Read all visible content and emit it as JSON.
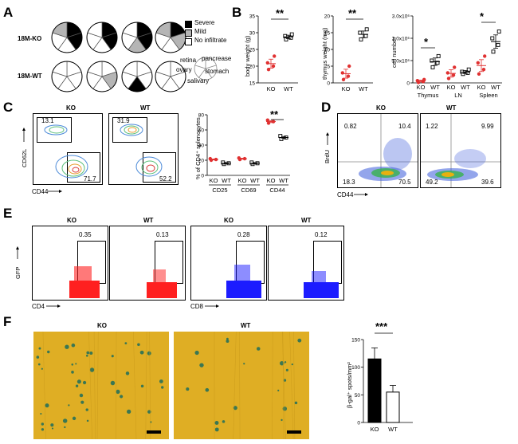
{
  "panels": {
    "A": "A",
    "B": "B",
    "C": "C",
    "D": "D",
    "E": "E",
    "F": "F"
  },
  "panelA": {
    "row_ko": "18M-KO",
    "row_wt": "18M-WT",
    "legend": [
      "Severe",
      "Mild",
      "No infiltrate"
    ],
    "organs": [
      "retina",
      "pancrease",
      "ovary",
      "stomach",
      "salivary"
    ],
    "colors": {
      "severe": "#000000",
      "mild": "#b5b5b5",
      "none": "#ffffff"
    }
  },
  "panelB": {
    "body": {
      "ylabel": "body weight (g)",
      "yticks": [
        "15",
        "20",
        "25",
        "30",
        "35"
      ],
      "groups": [
        "KO",
        "WT"
      ],
      "sig": "**"
    },
    "thymus": {
      "ylabel": "thymus weight (mg)",
      "yticks": [
        "0",
        "5",
        "10",
        "15",
        "20"
      ],
      "groups": [
        "KO",
        "WT"
      ],
      "sig": "**"
    },
    "cells": {
      "ylabel": "cell number",
      "yticks": [
        "0",
        "1.0x10⁶",
        "2.0x10⁶",
        "3.0x10⁶"
      ],
      "groups": [
        "KO",
        "WT",
        "KO",
        "WT",
        "KO",
        "WT"
      ],
      "tissues": [
        "Thymus",
        "LN",
        "Spleen"
      ],
      "sig1": "*",
      "sig2": "*"
    }
  },
  "panelC": {
    "ko_title": "KO",
    "wt_title": "WT",
    "ko_q": [
      "13.1",
      "71.7"
    ],
    "wt_q": [
      "31.9",
      "52.2"
    ],
    "yaxis": "CD62L",
    "xaxis": "CD44",
    "chart_ylabel": "% of CD4⁺ splenocytes",
    "chart_yticks": [
      "0",
      "20",
      "40",
      "60",
      "80"
    ],
    "markers": [
      "CD25",
      "CD69",
      "CD44"
    ],
    "groups": [
      "KO",
      "WT"
    ],
    "sig": "**"
  },
  "panelD": {
    "ko_title": "KO",
    "wt_title": "WT",
    "ko_q": [
      "0.82",
      "10.4",
      "18.3",
      "70.5"
    ],
    "wt_q": [
      "1.22",
      "9.99",
      "49.2",
      "39.6"
    ],
    "yaxis": "BrdU",
    "xaxis": "CD44"
  },
  "panelE": {
    "titles": [
      "KO",
      "WT",
      "KO",
      "WT"
    ],
    "values": [
      "0.35",
      "0.13",
      "0.28",
      "0.12"
    ],
    "yaxis": "GFP",
    "xaxis1": "CD4",
    "xaxis2": "CD8"
  },
  "panelF": {
    "ko_title": "KO",
    "wt_title": "WT",
    "ylabel": "β-gal⁺ spots/mm²",
    "yticks": [
      "0",
      "50",
      "100",
      "150"
    ],
    "groups": [
      "KO",
      "WT"
    ],
    "sig": "***"
  },
  "chart_data": [
    {
      "type": "scatter",
      "ylabel": "body weight (g)",
      "categories": [
        "KO",
        "WT"
      ],
      "ylim": [
        15,
        35
      ],
      "series": [
        {
          "name": "KO",
          "values": [
            19,
            20,
            21,
            23
          ]
        },
        {
          "name": "WT",
          "values": [
            28,
            28.5,
            29,
            29.5
          ]
        }
      ]
    },
    {
      "type": "scatter",
      "ylabel": "thymus weight (mg)",
      "categories": [
        "KO",
        "WT"
      ],
      "ylim": [
        0,
        20
      ],
      "series": [
        {
          "name": "KO",
          "values": [
            1,
            2,
            3,
            5
          ]
        },
        {
          "name": "WT",
          "values": [
            13,
            14,
            15,
            16
          ]
        }
      ]
    },
    {
      "type": "scatter",
      "ylabel": "cell number",
      "categories": [
        "Thymus KO",
        "Thymus WT",
        "LN KO",
        "LN WT",
        "Spleen KO",
        "Spleen WT"
      ],
      "ylim": [
        0,
        3000000
      ],
      "series": [
        {
          "name": "Thymus KO",
          "values": [
            20000,
            60000,
            100000,
            150000
          ]
        },
        {
          "name": "Thymus WT",
          "values": [
            700000,
            900000,
            1000000,
            1200000
          ]
        },
        {
          "name": "LN KO",
          "values": [
            200000,
            350000,
            450000,
            700000
          ]
        },
        {
          "name": "LN WT",
          "values": [
            400000,
            450000,
            500000,
            600000
          ]
        },
        {
          "name": "Spleen KO",
          "values": [
            400000,
            600000,
            900000,
            1200000
          ]
        },
        {
          "name": "Spleen WT",
          "values": [
            1400000,
            1700000,
            2000000,
            2300000
          ]
        }
      ]
    },
    {
      "type": "scatter",
      "ylabel": "% of CD4⁺ splenocytes",
      "categories": [
        "CD25 KO",
        "CD25 WT",
        "CD69 KO",
        "CD69 WT",
        "CD44 KO",
        "CD44 WT"
      ],
      "ylim": [
        0,
        80
      ],
      "series": [
        {
          "name": "CD25 KO",
          "values": [
            20,
            21,
            22
          ]
        },
        {
          "name": "CD25 WT",
          "values": [
            15,
            16,
            17
          ]
        },
        {
          "name": "CD69 KO",
          "values": [
            21,
            22,
            23
          ]
        },
        {
          "name": "CD69 WT",
          "values": [
            15,
            16,
            17
          ]
        },
        {
          "name": "CD44 KO",
          "values": [
            69,
            71,
            73
          ]
        },
        {
          "name": "CD44 WT",
          "values": [
            48,
            50,
            52
          ]
        }
      ]
    },
    {
      "type": "bar",
      "ylabel": "β-gal⁺ spots/mm²",
      "categories": [
        "KO",
        "WT"
      ],
      "values": [
        115,
        55
      ],
      "errors": [
        20,
        12
      ],
      "ylim": [
        0,
        150
      ]
    }
  ]
}
